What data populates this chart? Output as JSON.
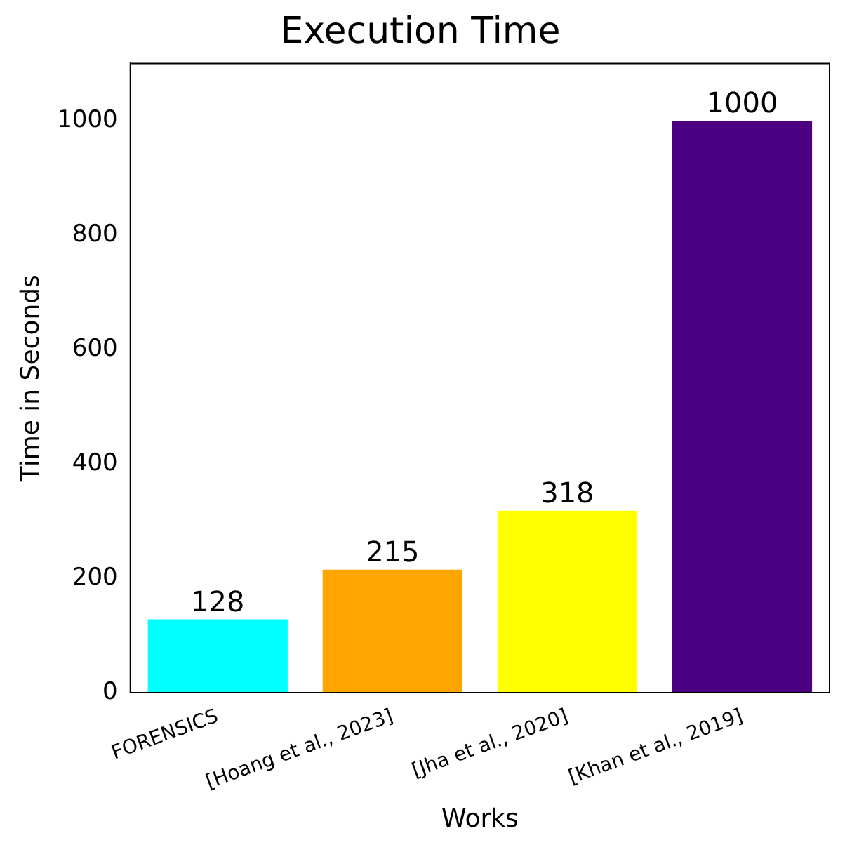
{
  "chart_data": {
    "type": "bar",
    "title": "Execution Time",
    "xlabel": "Works",
    "ylabel": "Time in Seconds",
    "categories": [
      "FORENSICS",
      "[Hoang et al., 2023]",
      "[Jha et al., 2020]",
      "[Khan et al., 2019]"
    ],
    "values": [
      128,
      215,
      318,
      1000
    ],
    "colors": [
      "#00ffff",
      "#ffa500",
      "#ffff00",
      "#4b0082"
    ],
    "ylim": [
      0,
      1100
    ],
    "yticks": [
      0,
      200,
      400,
      600,
      800,
      1000
    ],
    "grid": false,
    "legend": false,
    "data_labels": true
  }
}
